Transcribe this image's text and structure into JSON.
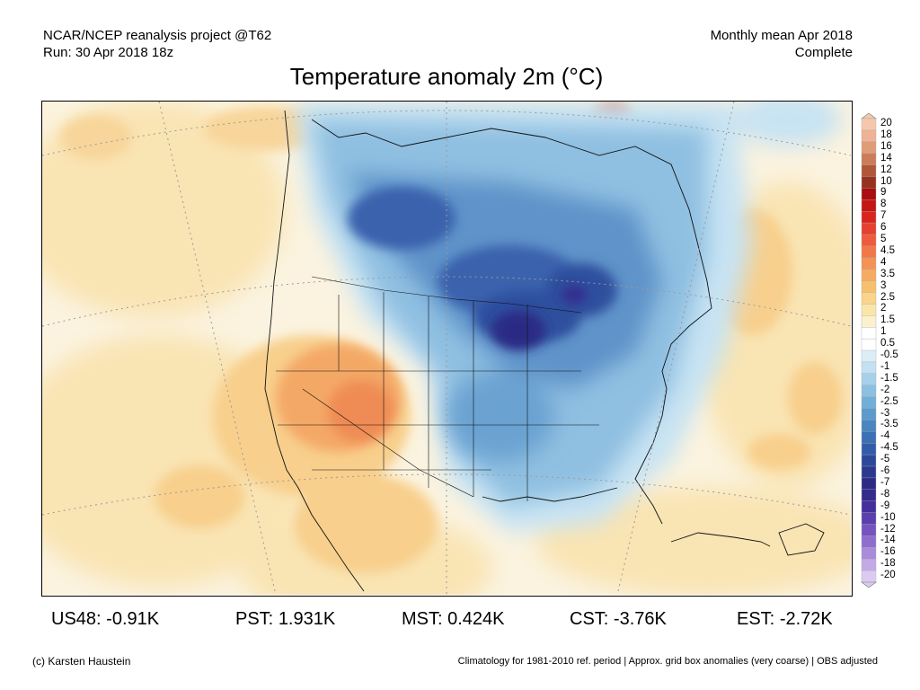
{
  "header": {
    "project": "NCAR/NCEP reanalysis project @T62",
    "run": "Run: 30 Apr 2018 18z",
    "period": "Monthly mean Apr 2018",
    "status": "Complete"
  },
  "title": "Temperature anomaly 2m (°C)",
  "colorbar": {
    "levels": [
      "20",
      "18",
      "16",
      "14",
      "12",
      "10",
      "9",
      "8",
      "7",
      "6",
      "5",
      "4.5",
      "4",
      "3.5",
      "3",
      "2.5",
      "2",
      "1.5",
      "1",
      "0.5",
      "-0.5",
      "-1",
      "-1.5",
      "-2",
      "-2.5",
      "-3",
      "-3.5",
      "-4",
      "-4.5",
      "-5",
      "-6",
      "-7",
      "-8",
      "-9",
      "-10",
      "-12",
      "-14",
      "-16",
      "-18",
      "-20"
    ],
    "colors": [
      "#f5c8ae",
      "#eeb394",
      "#e09b78",
      "#cd7c5a",
      "#b2563a",
      "#96331f",
      "#aa0e10",
      "#c51515",
      "#d9261c",
      "#e64030",
      "#ef5b3d",
      "#f2784a",
      "#f49356",
      "#f6aa62",
      "#f7c06f",
      "#f9d48a",
      "#fae6a9",
      "#fbf2cd",
      "#ffffff",
      "#ffffff",
      "#dcedf7",
      "#c3e1f2",
      "#a7d1ea",
      "#8bc0e1",
      "#72afd7",
      "#5c9bcc",
      "#4a86c1",
      "#3b70b5",
      "#325ca9",
      "#2c489a",
      "#2c3890",
      "#2c2a84",
      "#352a8e",
      "#452f9c",
      "#5a3fae",
      "#7554c0",
      "#8f6dcf",
      "#a98bdb",
      "#c3aae6",
      "#dccbf0"
    ]
  },
  "map": {
    "legend_colors": {
      "warm_light": "#f9e4b3",
      "warm": "#f8cf8c",
      "hot": "#f1935a",
      "cold_light": "#c7e3f3",
      "cold": "#6aa2d1",
      "very_cold": "#2f4f9e",
      "extreme_cold": "#2c2a84"
    }
  },
  "stats": [
    {
      "label": "US48:",
      "value": "-0.91K"
    },
    {
      "label": "PST:",
      "value": "1.931K"
    },
    {
      "label": "MST:",
      "value": "0.424K"
    },
    {
      "label": "CST:",
      "value": "-3.76K"
    },
    {
      "label": "EST:",
      "value": "-2.72K"
    }
  ],
  "footer": {
    "credit": "(c) Karsten Haustein",
    "note": "Climatology for 1981-2010 ref. period | Approx. grid box anomalies (very coarse) | OBS adjusted"
  }
}
